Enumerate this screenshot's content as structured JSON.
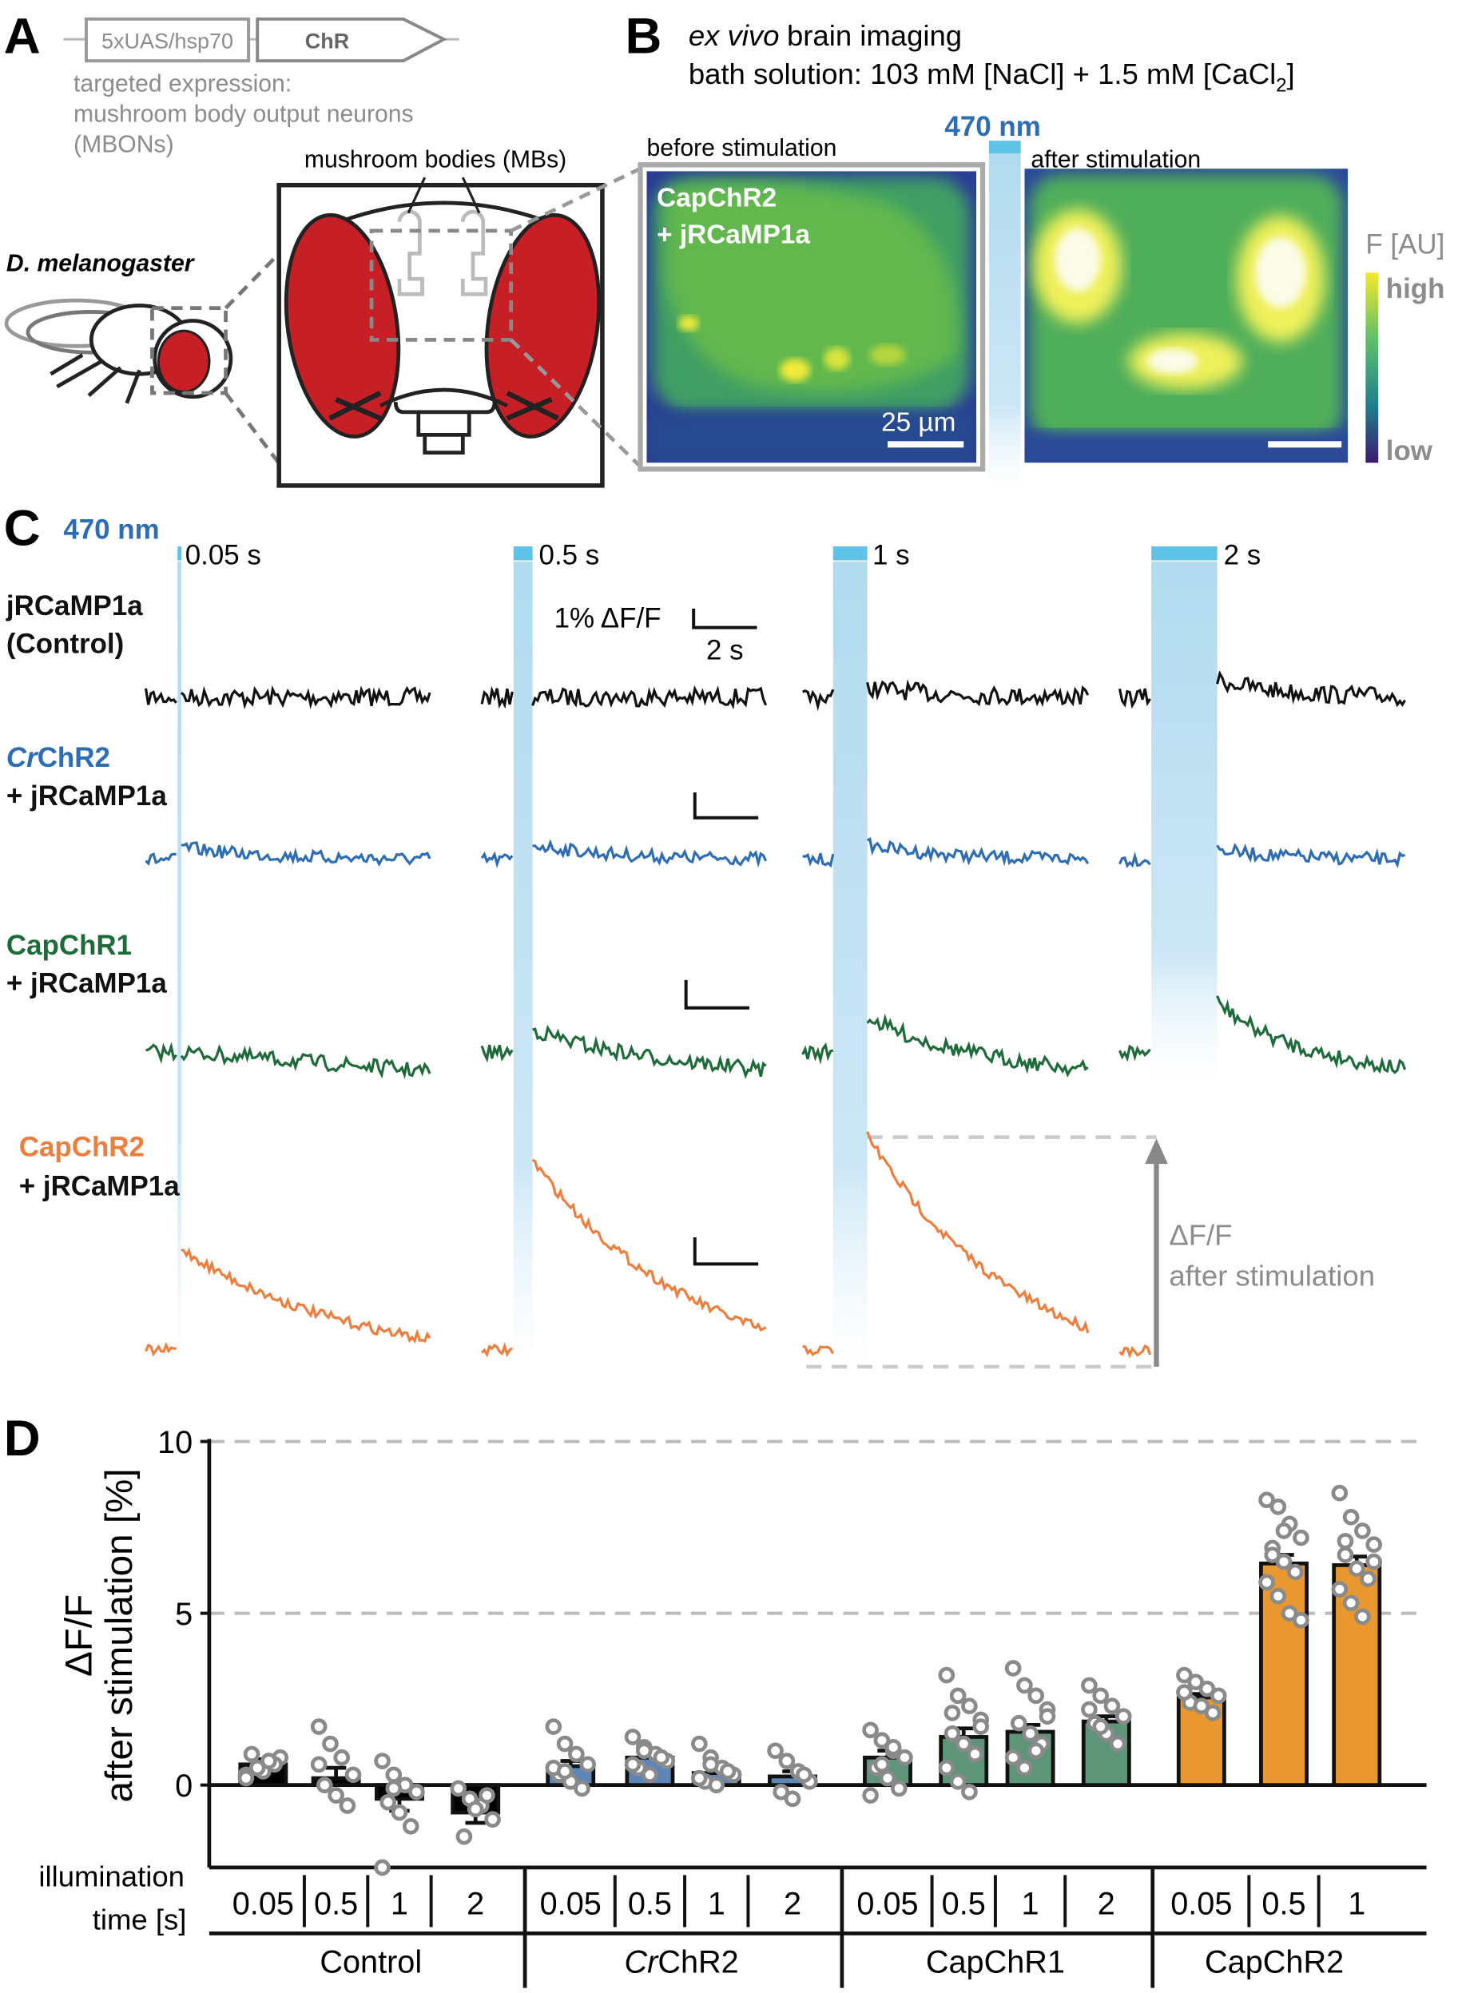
{
  "panel_labels": [
    "A",
    "B",
    "C",
    "D"
  ],
  "panel_a": {
    "construct": [
      "5xUAS/hsp70",
      "ChR"
    ],
    "expression": [
      "targeted expression:",
      "mushroom body output neurons",
      "(MBONs)"
    ],
    "species": "D. melanogaster",
    "mb_label": "mushroom bodies (MBs)"
  },
  "panel_b": {
    "title_italic": "ex vivo",
    "title_rest": "brain imaging",
    "solution": [
      "bath solution: 103 mM [NaCl] + 1.5 mM [CaCl",
      "2",
      "]"
    ],
    "before": "before stimulation",
    "after": "after stimulation",
    "wavelength": "470 nm",
    "overlay": [
      "CapChR2",
      "+ jRCaMP1a"
    ],
    "scale": "25 µm",
    "colorbar_title": "F [AU]",
    "high": "high",
    "low": "low"
  },
  "panel_c": {
    "wavelength": "470 nm",
    "durations": [
      "0.05 s",
      "0.5 s",
      "1 s",
      "2 s"
    ],
    "scalebar": [
      "1% ΔF/F",
      "2 s"
    ],
    "annotation": [
      "ΔF/F",
      "after stimulation"
    ],
    "rows": [
      {
        "name": "jRCaMP1a",
        "second": "(Control)",
        "color": "#111111"
      },
      {
        "name_italic": "Cr",
        "name": "ChR2",
        "second": "+ jRCaMP1a",
        "color": "#2d6db5"
      },
      {
        "name": "CapChR1",
        "second": "+ jRCaMP1a",
        "color": "#1e6b3a"
      },
      {
        "name": "CapChR2",
        "second": "+ jRCaMP1a",
        "color": "#ef7d3c"
      }
    ]
  },
  "chart_data": {
    "type": "bar",
    "y_label": [
      "ΔF/F",
      "after stimulation [%]"
    ],
    "x_label": [
      "illumination",
      "time [s]"
    ],
    "ylim": [
      -2.4,
      10
    ],
    "yticks": [
      0,
      5,
      10
    ],
    "grid": true,
    "series": [
      {
        "name": "Control",
        "color": "#000000",
        "categories": [
          "0.05",
          "0.5",
          "1",
          "2"
        ],
        "values": [
          0.6,
          0.2,
          -0.4,
          -0.8
        ],
        "errors": [
          0.15,
          0.3,
          0.35,
          0.3
        ],
        "points": [
          [
            0.3,
            0.5,
            0.7,
            0.8,
            0.9,
            0.4,
            0.6,
            0.2,
            0.5,
            0.7
          ],
          [
            1.7,
            1.2,
            0.8,
            0.3,
            0,
            -0.3,
            -0.6,
            0.6
          ],
          [
            0.7,
            0.3,
            0,
            -0.2,
            -0.5,
            -0.8,
            -1.2,
            -2.4,
            -0.1
          ],
          [
            -0.1,
            -0.4,
            -0.6,
            -1.0,
            -1.5,
            -0.7,
            -0.3
          ]
        ]
      },
      {
        "name_italic": "Cr",
        "name": "ChR2",
        "color": "#5d86b8",
        "categories": [
          "0.05",
          "0.5",
          "1",
          "2"
        ],
        "values": [
          0.55,
          0.8,
          0.35,
          0.25
        ],
        "errors": [
          0.15,
          0.1,
          0.1,
          0.15
        ],
        "points": [
          [
            1.7,
            1.2,
            0.9,
            0.6,
            0.3,
            0.1,
            -0.1,
            0.5,
            0.4
          ],
          [
            1.4,
            1.1,
            0.9,
            0.7,
            0.5,
            0.3,
            0.8,
            0.6,
            1.0
          ],
          [
            1.2,
            0.8,
            0.5,
            0.3,
            0.1,
            0,
            0.4,
            0.2,
            0.6
          ],
          [
            1.0,
            0.7,
            0.4,
            0.1,
            -0.2,
            -0.4,
            0.3
          ]
        ]
      },
      {
        "name": "CapChR1",
        "color": "#5e9478",
        "categories": [
          "0.05",
          "0.5",
          "1",
          "2"
        ],
        "values": [
          0.8,
          1.4,
          1.55,
          1.85
        ],
        "errors": [
          0.2,
          0.25,
          0.2,
          0.15
        ],
        "points": [
          [
            1.6,
            1.3,
            1.0,
            0.8,
            0.5,
            0.2,
            -0.1,
            -0.3,
            0.6,
            1.1
          ],
          [
            3.2,
            2.6,
            2.3,
            1.9,
            1.5,
            1.2,
            0.9,
            0.5,
            0.1,
            -0.2,
            1.7,
            2.1
          ],
          [
            3.4,
            2.9,
            2.6,
            2.2,
            1.8,
            1.5,
            1.2,
            0.8,
            0.5,
            1.0,
            2.0
          ],
          [
            2.9,
            2.6,
            2.3,
            2.0,
            1.8,
            1.5,
            1.2,
            2.2,
            1.7
          ]
        ]
      },
      {
        "name": "CapChR2",
        "color": "#e8982e",
        "categories": [
          "0.05",
          "0.5",
          "1"
        ],
        "values": [
          2.55,
          6.45,
          6.4
        ],
        "errors": [
          0.1,
          0.25,
          0.25
        ],
        "points": [
          [
            3.2,
            3.0,
            2.8,
            2.6,
            2.4,
            2.3,
            2.1,
            2.7
          ],
          [
            8.3,
            8.1,
            7.6,
            7.2,
            6.9,
            6.5,
            6.2,
            5.9,
            5.5,
            5.0,
            4.8,
            6.7,
            7.4
          ],
          [
            8.5,
            7.8,
            7.4,
            7.0,
            6.7,
            6.3,
            6.0,
            5.7,
            5.3,
            4.9,
            6.5,
            7.1
          ]
        ]
      }
    ]
  }
}
